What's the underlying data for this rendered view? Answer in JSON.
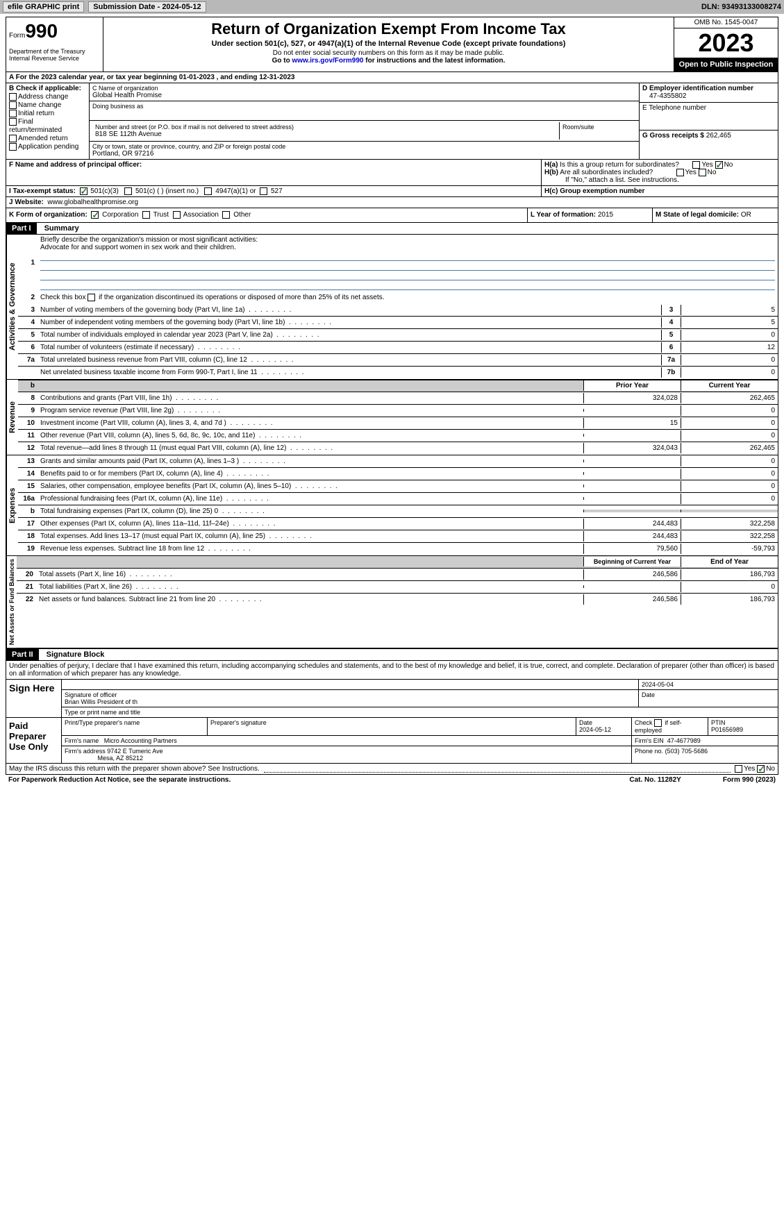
{
  "topbar": {
    "efile": "efile GRAPHIC print",
    "submission": "Submission Date - 2024-05-12",
    "dln": "DLN: 93493133008274"
  },
  "header": {
    "form_label": "Form",
    "form_number": "990",
    "dept": "Department of the Treasury Internal Revenue Service",
    "title": "Return of Organization Exempt From Income Tax",
    "subtitle": "Under section 501(c), 527, or 4947(a)(1) of the Internal Revenue Code (except private foundations)",
    "ssn_note": "Do not enter social security numbers on this form as it may be made public.",
    "goto": "Go to ",
    "goto_link": "www.irs.gov/Form990",
    "goto_suffix": " for instructions and the latest information.",
    "omb": "OMB No. 1545-0047",
    "year": "2023",
    "inspection": "Open to Public Inspection"
  },
  "row_a": "A For the 2023 calendar year, or tax year beginning 01-01-2023   , and ending 12-31-2023",
  "col_b": {
    "header": "B Check if applicable:",
    "items": [
      "Address change",
      "Name change",
      "Initial return",
      "Final return/terminated",
      "Amended return",
      "Application pending"
    ]
  },
  "col_c": {
    "name_label": "C Name of organization",
    "name": "Global Health Promise",
    "dba_label": "Doing business as",
    "addr_label": "Number and street (or P.O. box if mail is not delivered to street address)",
    "addr": "818 SE 112th Avenue",
    "room_label": "Room/suite",
    "city_label": "City or town, state or province, country, and ZIP or foreign postal code",
    "city": "Portland, OR  97216"
  },
  "col_d": {
    "ein_label": "D Employer identification number",
    "ein": "47-4355802",
    "phone_label": "E Telephone number",
    "gross_label": "G Gross receipts $ ",
    "gross": "262,465"
  },
  "row_f": {
    "label": "F  Name and address of principal officer:"
  },
  "row_h": {
    "ha_label": "H(a)  Is this a group return for subordinates?",
    "hb_label": "H(b)  Are all subordinates included?",
    "hb_note": "If \"No,\" attach a list. See instructions.",
    "hc_label": "H(c)  Group exemption number",
    "yes": "Yes",
    "no": "No"
  },
  "row_i": {
    "label": "I  Tax-exempt status:",
    "opt1": "501(c)(3)",
    "opt2": "501(c) (  ) (insert no.)",
    "opt3": "4947(a)(1) or",
    "opt4": "527"
  },
  "row_j": {
    "label": "J  Website:",
    "value": "www.globalhealthpromise.org"
  },
  "row_k": {
    "label": "K Form of organization:",
    "corp": "Corporation",
    "trust": "Trust",
    "assoc": "Association",
    "other": "Other",
    "l_label": "L Year of formation: ",
    "l_val": "2015",
    "m_label": "M State of legal domicile: ",
    "m_val": "OR"
  },
  "part1": {
    "label": "Part I",
    "title": "Summary",
    "line1_label": "Briefly describe the organization's mission or most significant activities:",
    "line1_val": "Advocate for and support women in sex work and their children.",
    "line2": "Check this box       if the organization discontinued its operations or disposed of more than 25% of its net assets.",
    "gov_label": "Activities & Governance",
    "rev_label": "Revenue",
    "exp_label": "Expenses",
    "net_label": "Net Assets or Fund Balances",
    "lines_gov": [
      {
        "n": "3",
        "d": "Number of voting members of the governing body (Part VI, line 1a)",
        "box": "3",
        "v": "5"
      },
      {
        "n": "4",
        "d": "Number of independent voting members of the governing body (Part VI, line 1b)",
        "box": "4",
        "v": "5"
      },
      {
        "n": "5",
        "d": "Total number of individuals employed in calendar year 2023 (Part V, line 2a)",
        "box": "5",
        "v": "0"
      },
      {
        "n": "6",
        "d": "Total number of volunteers (estimate if necessary)",
        "box": "6",
        "v": "12"
      },
      {
        "n": "7a",
        "d": "Total unrelated business revenue from Part VIII, column (C), line 12",
        "box": "7a",
        "v": "0"
      },
      {
        "n": "",
        "d": "Net unrelated business taxable income from Form 990-T, Part I, line 11",
        "box": "7b",
        "v": "0"
      }
    ],
    "prior_year": "Prior Year",
    "current_year": "Current Year",
    "lines_rev": [
      {
        "n": "8",
        "d": "Contributions and grants (Part VIII, line 1h)",
        "py": "324,028",
        "cy": "262,465"
      },
      {
        "n": "9",
        "d": "Program service revenue (Part VIII, line 2g)",
        "py": "",
        "cy": "0"
      },
      {
        "n": "10",
        "d": "Investment income (Part VIII, column (A), lines 3, 4, and 7d )",
        "py": "15",
        "cy": "0"
      },
      {
        "n": "11",
        "d": "Other revenue (Part VIII, column (A), lines 5, 6d, 8c, 9c, 10c, and 11e)",
        "py": "",
        "cy": "0"
      },
      {
        "n": "12",
        "d": "Total revenue—add lines 8 through 11 (must equal Part VIII, column (A), line 12)",
        "py": "324,043",
        "cy": "262,465"
      }
    ],
    "lines_exp": [
      {
        "n": "13",
        "d": "Grants and similar amounts paid (Part IX, column (A), lines 1–3 )",
        "py": "",
        "cy": "0"
      },
      {
        "n": "14",
        "d": "Benefits paid to or for members (Part IX, column (A), line 4)",
        "py": "",
        "cy": "0"
      },
      {
        "n": "15",
        "d": "Salaries, other compensation, employee benefits (Part IX, column (A), lines 5–10)",
        "py": "",
        "cy": "0"
      },
      {
        "n": "16a",
        "d": "Professional fundraising fees (Part IX, column (A), line 11e)",
        "py": "",
        "cy": "0"
      },
      {
        "n": "b",
        "d": "Total fundraising expenses (Part IX, column (D), line 25) 0",
        "py": "shaded",
        "cy": "shaded"
      },
      {
        "n": "17",
        "d": "Other expenses (Part IX, column (A), lines 11a–11d, 11f–24e)",
        "py": "244,483",
        "cy": "322,258"
      },
      {
        "n": "18",
        "d": "Total expenses. Add lines 13–17 (must equal Part IX, column (A), line 25)",
        "py": "244,483",
        "cy": "322,258"
      },
      {
        "n": "19",
        "d": "Revenue less expenses. Subtract line 18 from line 12",
        "py": "79,560",
        "cy": "-59,793"
      }
    ],
    "begin_year": "Beginning of Current Year",
    "end_year": "End of Year",
    "lines_net": [
      {
        "n": "20",
        "d": "Total assets (Part X, line 16)",
        "py": "246,586",
        "cy": "186,793"
      },
      {
        "n": "21",
        "d": "Total liabilities (Part X, line 26)",
        "py": "",
        "cy": "0"
      },
      {
        "n": "22",
        "d": "Net assets or fund balances. Subtract line 21 from line 20",
        "py": "246,586",
        "cy": "186,793"
      }
    ]
  },
  "part2": {
    "label": "Part II",
    "title": "Signature Block",
    "declaration": "Under penalties of perjury, I declare that I have examined this return, including accompanying schedules and statements, and to the best of my knowledge and belief, it is true, correct, and complete. Declaration of preparer (other than officer) is based on all information of which preparer has any knowledge.",
    "sign_here": "Sign Here",
    "sig_officer": "Signature of officer",
    "sig_date": "2024-05-04",
    "date_label": "Date",
    "officer_name": "Brian Willis  President of th",
    "type_print": "Type or print name and title",
    "paid_prep": "Paid Preparer Use Only",
    "prep_name_label": "Print/Type preparer's name",
    "prep_sig_label": "Preparer's signature",
    "prep_date_label": "Date",
    "prep_date": "2024-05-12",
    "check_self": "Check         if self-employed",
    "ptin_label": "PTIN",
    "ptin": "P01656989",
    "firm_name_label": "Firm's name",
    "firm_name": "Micro Accounting Partners",
    "firm_ein_label": "Firm's EIN",
    "firm_ein": "47-4677989",
    "firm_addr_label": "Firm's address",
    "firm_addr1": "9742 E Tumeric Ave",
    "firm_addr2": "Mesa, AZ  85212",
    "phone_label": "Phone no.",
    "phone": "(503) 705-5686",
    "discuss": "May the IRS discuss this return with the preparer shown above? See Instructions.",
    "yes": "Yes",
    "no": "No"
  },
  "footer": {
    "paperwork": "For Paperwork Reduction Act Notice, see the separate instructions.",
    "cat": "Cat. No. 11282Y",
    "form": "Form 990 (2023)"
  }
}
